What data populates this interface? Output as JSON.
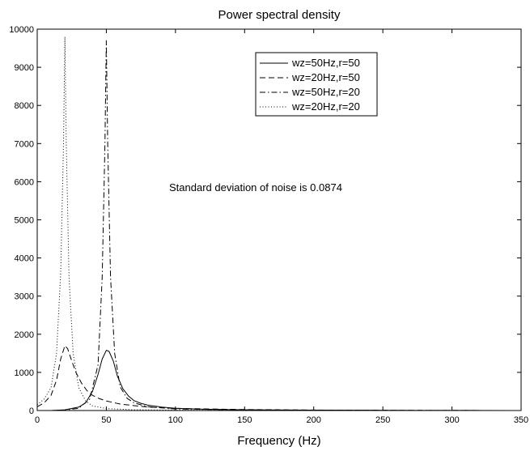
{
  "chart_data": {
    "type": "line",
    "title": "Power spectral density",
    "xlabel": "Frequency (Hz)",
    "ylabel": "",
    "xlim": [
      0,
      350
    ],
    "ylim": [
      0,
      10000
    ],
    "xticks": [
      0,
      50,
      100,
      150,
      200,
      250,
      300,
      350
    ],
    "yticks": [
      0,
      1000,
      2000,
      3000,
      4000,
      5000,
      6000,
      7000,
      8000,
      9000,
      10000
    ],
    "grid": false,
    "legend_position": "top-right",
    "annotation": "Standard deviation of noise is 0.0874",
    "series": [
      {
        "name": "wz=50Hz,r=50",
        "style": "solid",
        "x": [
          0,
          10,
          20,
          30,
          35,
          40,
          44,
          47,
          50,
          52,
          55,
          58,
          62,
          66,
          70,
          75,
          80,
          90,
          100,
          120,
          150,
          200,
          250,
          300,
          350
        ],
        "y": [
          0,
          0,
          20,
          90,
          200,
          500,
          950,
          1350,
          1580,
          1550,
          1300,
          900,
          570,
          380,
          260,
          190,
          140,
          90,
          60,
          35,
          20,
          10,
          5,
          2,
          0
        ]
      },
      {
        "name": "wz=20Hz,r=50",
        "style": "dashed",
        "x": [
          0,
          5,
          10,
          14,
          17,
          20,
          22,
          25,
          28,
          32,
          36,
          40,
          45,
          50,
          60,
          80,
          100,
          150,
          200,
          250,
          300,
          350
        ],
        "y": [
          100,
          200,
          400,
          800,
          1350,
          1700,
          1620,
          1300,
          1000,
          720,
          520,
          400,
          310,
          250,
          170,
          90,
          55,
          25,
          12,
          6,
          3,
          0
        ]
      },
      {
        "name": "wz=50Hz,r=20",
        "style": "dashdot",
        "x": [
          0,
          10,
          20,
          30,
          38,
          44,
          47,
          49,
          50,
          51,
          53,
          56,
          60,
          65,
          70,
          80,
          100,
          150,
          200,
          250,
          300,
          350
        ],
        "y": [
          0,
          0,
          10,
          60,
          300,
          1200,
          3500,
          7000,
          9700,
          7000,
          3500,
          1500,
          620,
          320,
          200,
          100,
          40,
          15,
          7,
          4,
          2,
          0
        ]
      },
      {
        "name": "wz=20Hz,r=20",
        "style": "dotted",
        "x": [
          0,
          5,
          10,
          14,
          17,
          19,
          20,
          21,
          23,
          26,
          30,
          35,
          40,
          50,
          70,
          100,
          150,
          200,
          250,
          300,
          350
        ],
        "y": [
          150,
          300,
          600,
          1500,
          3600,
          7000,
          9800,
          7000,
          3500,
          1500,
          600,
          250,
          120,
          50,
          20,
          8,
          3,
          1,
          0,
          0,
          0
        ]
      }
    ]
  }
}
